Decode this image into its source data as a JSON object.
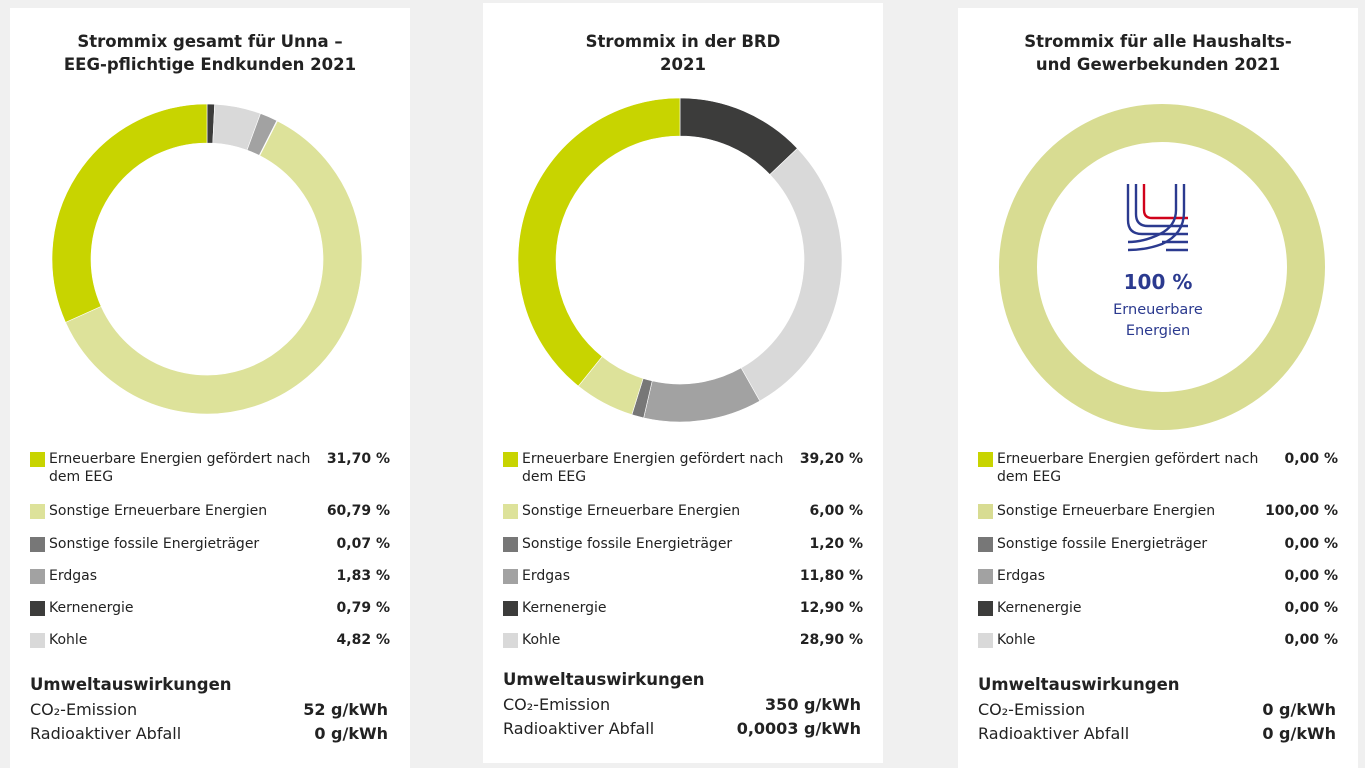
{
  "chart_data": [
    {
      "type": "pie",
      "title": "Strommix gesamt für Unna –\nEEG-pflichtige Endkunden 2021",
      "categories": [
        "Erneuerbare Energien gefördert nach dem EEG",
        "Sonstige Erneuerbare Energien",
        "Sonstige fossile Energieträger",
        "Erdgas",
        "Kernenergie",
        "Kohle"
      ],
      "values": [
        31.7,
        60.79,
        0.07,
        1.83,
        0.79,
        4.82
      ],
      "value_labels": [
        "31,70 %",
        "60,79 %",
        "0,07 %",
        "1,83 %",
        "0,79 %",
        "4,82 %"
      ],
      "colors": [
        "#c8d400",
        "#dde29a",
        "#777777",
        "#a2a2a2",
        "#3c3c3b",
        "#d9d9d9"
      ],
      "impact": {
        "title": "Umweltauswirkungen",
        "rows": [
          {
            "label": "CO₂-Emission",
            "value": "52 g/kWh"
          },
          {
            "label": "Radioaktiver Abfall",
            "value": "0 g/kWh"
          }
        ]
      }
    },
    {
      "type": "pie",
      "title": "Strommix in der BRD\n2021",
      "categories": [
        "Erneuerbare Energien gefördert nach dem EEG",
        "Sonstige Erneuerbare Energien",
        "Sonstige fossile Energieträger",
        "Erdgas",
        "Kernenergie",
        "Kohle"
      ],
      "values": [
        39.2,
        6.0,
        1.2,
        11.8,
        12.9,
        28.9
      ],
      "value_labels": [
        "39,20 %",
        "6,00 %",
        "1,20 %",
        "11,80 %",
        "12,90 %",
        "28,90 %"
      ],
      "colors": [
        "#c8d400",
        "#dde29a",
        "#777777",
        "#a2a2a2",
        "#3c3c3b",
        "#d9d9d9"
      ],
      "impact": {
        "title": "Umweltauswirkungen",
        "rows": [
          {
            "label": "CO₂-Emission",
            "value": "350 g/kWh"
          },
          {
            "label": "Radioaktiver Abfall",
            "value": "0,0003 g/kWh"
          }
        ]
      }
    },
    {
      "type": "pie",
      "title": "Strommix für alle Haushalts-\nund Gewerbekunden 2021",
      "categories": [
        "Erneuerbare Energien gefördert nach dem EEG",
        "Sonstige Erneuerbare Energien",
        "Sonstige fossile Energieträger",
        "Erdgas",
        "Kernenergie",
        "Kohle"
      ],
      "values": [
        0.0,
        100.0,
        0.0,
        0.0,
        0.0,
        0.0
      ],
      "value_labels": [
        "0,00 %",
        "100,00 %",
        "0,00 %",
        "0,00 %",
        "0,00 %",
        "0,00 %"
      ],
      "colors": [
        "#c8d400",
        "#d8dc92",
        "#777777",
        "#a2a2a2",
        "#3c3c3b",
        "#d9d9d9"
      ],
      "center_label": "100 %",
      "center_text": "Erneuerbare\nEnergien",
      "impact": {
        "title": "Umweltauswirkungen",
        "rows": [
          {
            "label": "CO₂-Emission",
            "value": "0 g/kWh"
          },
          {
            "label": "Radioaktiver Abfall",
            "value": "0 g/kWh"
          }
        ]
      }
    }
  ]
}
